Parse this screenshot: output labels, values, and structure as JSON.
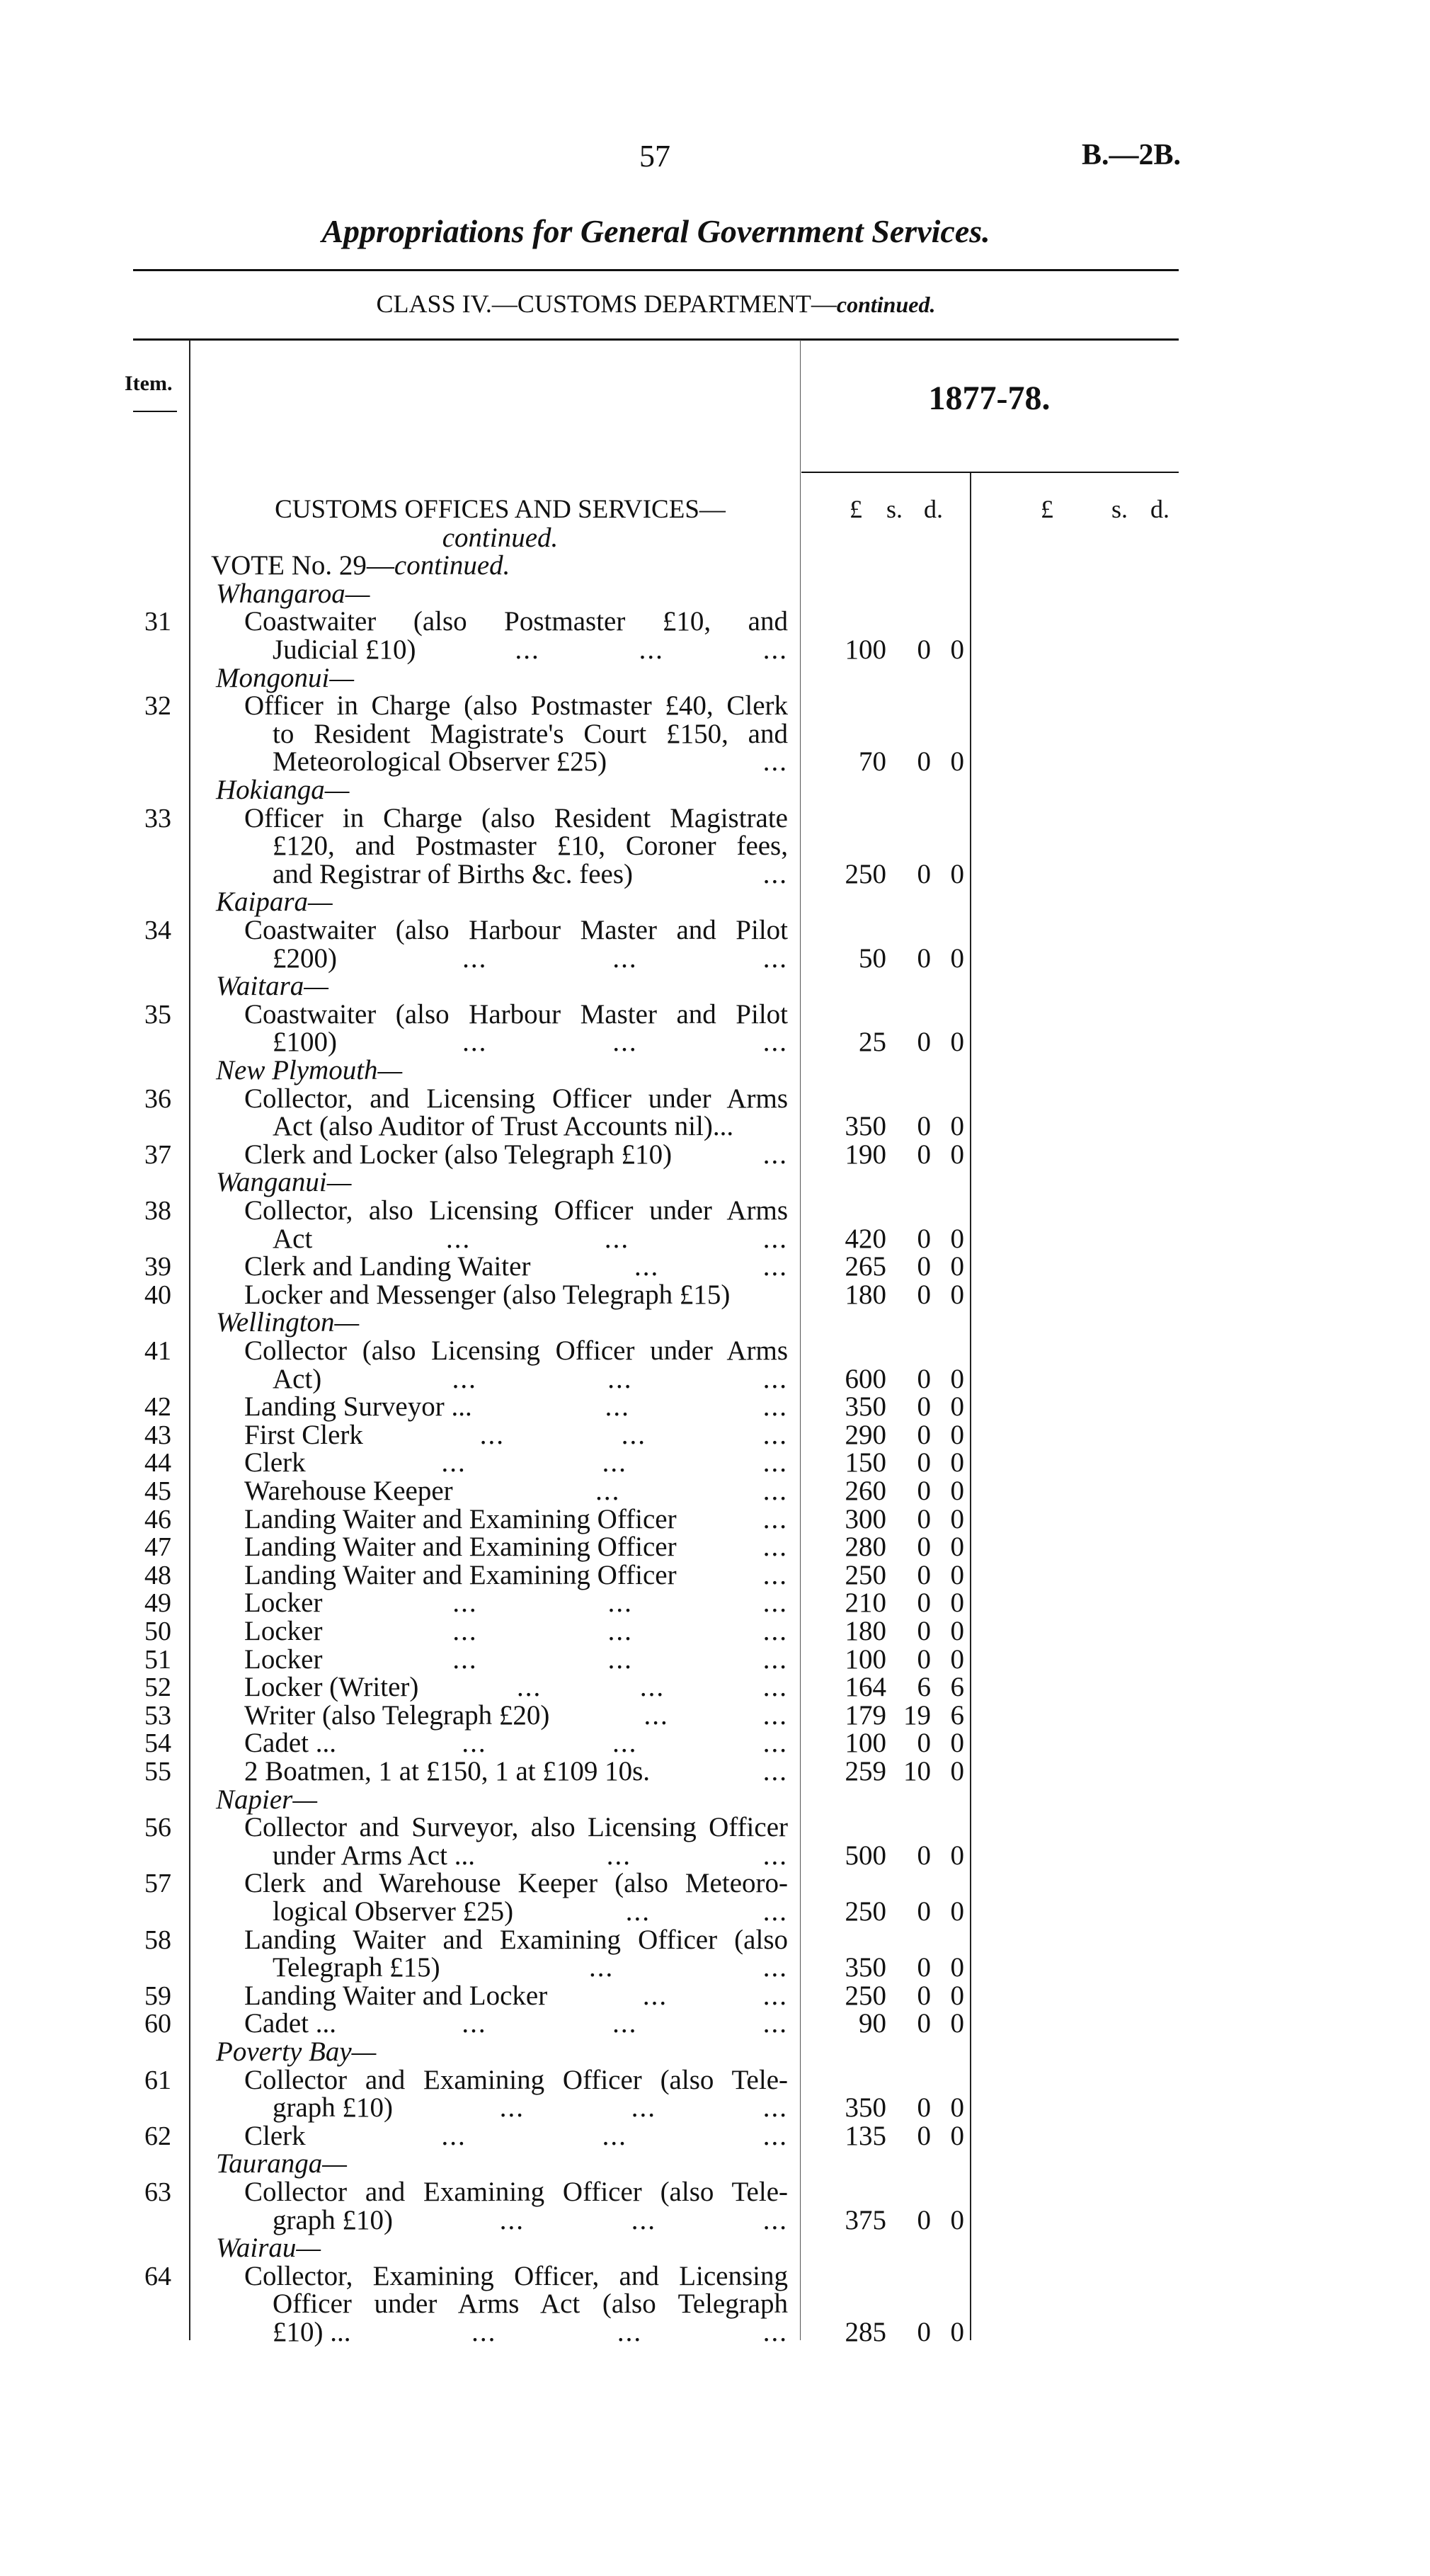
{
  "header": {
    "page_number": "57",
    "reference": "B.—2B.",
    "title": "Appropriations for General Government Services.",
    "class_title": "CLASS IV.—CUSTOMS DEPARTMENT—",
    "class_suffix": "continued."
  },
  "table": {
    "item_header": "Item.",
    "year_header": "1877-78.",
    "col1": {
      "pounds": "£",
      "shillings": "s.",
      "pence": "d."
    },
    "col2": {
      "pounds": "£",
      "shillings": "s.",
      "pence": "d."
    }
  },
  "lines": [
    {
      "kind": "heading",
      "text": "CUSTOMS OFFICES AND SERVICES—"
    },
    {
      "kind": "centered-italic",
      "text": "continued."
    },
    {
      "kind": "vote",
      "text": "VOTE No. 29—",
      "suffix": "continued."
    },
    {
      "kind": "place",
      "text": "Whangaroa—"
    },
    {
      "kind": "entry",
      "item": "31",
      "text": "Coastwaiter (also Postmaster £10, and",
      "justify": true
    },
    {
      "kind": "cont",
      "text": "Judicial £10)",
      "dots": 3,
      "amount": [
        "100",
        "0",
        "0"
      ]
    },
    {
      "kind": "place",
      "text": "Mongonui—"
    },
    {
      "kind": "entry",
      "item": "32",
      "text": "Officer in Charge (also Postmaster £40, Clerk",
      "justify": true
    },
    {
      "kind": "cont",
      "text": "to Resident Magistrate's Court £150, and",
      "justify": true
    },
    {
      "kind": "cont",
      "text": "Meteorological Observer £25)",
      "dots": 1,
      "amount": [
        "70",
        "0",
        "0"
      ]
    },
    {
      "kind": "place",
      "text": "Hokianga—"
    },
    {
      "kind": "entry",
      "item": "33",
      "text": "Officer in Charge (also Resident Magistrate",
      "justify": true
    },
    {
      "kind": "cont",
      "text": "£120, and Postmaster £10, Coroner fees,",
      "justify": true
    },
    {
      "kind": "cont",
      "text": "and Registrar of Births &c. fees)",
      "dots": 1,
      "amount": [
        "250",
        "0",
        "0"
      ]
    },
    {
      "kind": "place",
      "text": "Kaipara—"
    },
    {
      "kind": "entry",
      "item": "34",
      "text": "Coastwaiter (also Harbour Master and Pilot",
      "justify": true
    },
    {
      "kind": "cont",
      "text": "£200)",
      "dots": 3,
      "amount": [
        "50",
        "0",
        "0"
      ]
    },
    {
      "kind": "place",
      "text": "Waitara—"
    },
    {
      "kind": "entry",
      "item": "35",
      "text": "Coastwaiter (also Harbour Master and Pilot",
      "justify": true
    },
    {
      "kind": "cont",
      "text": "£100)",
      "dots": 3,
      "amount": [
        "25",
        "0",
        "0"
      ]
    },
    {
      "kind": "place",
      "text": "New Plymouth—"
    },
    {
      "kind": "entry",
      "item": "36",
      "text": "Collector, and Licensing Officer under Arms",
      "justify": true
    },
    {
      "kind": "cont",
      "text": "Act (also Auditor of Trust Accounts nil)...",
      "amount": [
        "350",
        "0",
        "0"
      ]
    },
    {
      "kind": "entry",
      "item": "37",
      "text": "Clerk and Locker (also Telegraph £10)",
      "dots": 1,
      "amount": [
        "190",
        "0",
        "0"
      ]
    },
    {
      "kind": "place",
      "text": "Wanganui—"
    },
    {
      "kind": "entry",
      "item": "38",
      "text": "Collector, also Licensing Officer under Arms",
      "justify": true
    },
    {
      "kind": "cont",
      "text": "Act",
      "dots": 3,
      "amount": [
        "420",
        "0",
        "0"
      ]
    },
    {
      "kind": "entry",
      "item": "39",
      "text": "Clerk and Landing Waiter",
      "dots": 2,
      "amount": [
        "265",
        "0",
        "0"
      ]
    },
    {
      "kind": "entry",
      "item": "40",
      "text": "Locker and Messenger (also Telegraph £15)",
      "amount": [
        "180",
        "0",
        "0"
      ]
    },
    {
      "kind": "place",
      "text": "Wellington—"
    },
    {
      "kind": "entry",
      "item": "41",
      "text": "Collector (also Licensing Officer under Arms",
      "justify": true
    },
    {
      "kind": "cont",
      "text": "Act)",
      "dots": 3,
      "amount": [
        "600",
        "0",
        "0"
      ]
    },
    {
      "kind": "entry",
      "item": "42",
      "text": "Landing Surveyor ...",
      "dots": 2,
      "amount": [
        "350",
        "0",
        "0"
      ]
    },
    {
      "kind": "entry",
      "item": "43",
      "text": "First Clerk",
      "dots": 3,
      "amount": [
        "290",
        "0",
        "0"
      ]
    },
    {
      "kind": "entry",
      "item": "44",
      "text": "Clerk",
      "dots": 3,
      "amount": [
        "150",
        "0",
        "0"
      ]
    },
    {
      "kind": "entry",
      "item": "45",
      "text": "Warehouse Keeper",
      "dots": 2,
      "amount": [
        "260",
        "0",
        "0"
      ]
    },
    {
      "kind": "entry",
      "item": "46",
      "text": "Landing Waiter and Examining Officer",
      "dots": 1,
      "amount": [
        "300",
        "0",
        "0"
      ]
    },
    {
      "kind": "entry",
      "item": "47",
      "text": "Landing Waiter and Examining Officer",
      "dots": 1,
      "amount": [
        "280",
        "0",
        "0"
      ]
    },
    {
      "kind": "entry",
      "item": "48",
      "text": "Landing Waiter and Examining Officer",
      "dots": 1,
      "amount": [
        "250",
        "0",
        "0"
      ]
    },
    {
      "kind": "entry",
      "item": "49",
      "text": "Locker",
      "dots": 3,
      "amount": [
        "210",
        "0",
        "0"
      ]
    },
    {
      "kind": "entry",
      "item": "50",
      "text": "Locker",
      "dots": 3,
      "amount": [
        "180",
        "0",
        "0"
      ]
    },
    {
      "kind": "entry",
      "item": "51",
      "text": "Locker",
      "dots": 3,
      "amount": [
        "100",
        "0",
        "0"
      ]
    },
    {
      "kind": "entry",
      "item": "52",
      "text": "Locker (Writer)",
      "dots": 3,
      "amount": [
        "164",
        "6",
        "6"
      ]
    },
    {
      "kind": "entry",
      "item": "53",
      "text": "Writer (also Telegraph £20)",
      "dots": 2,
      "amount": [
        "179",
        "19",
        "6"
      ]
    },
    {
      "kind": "entry",
      "item": "54",
      "text": "Cadet ...",
      "dots": 3,
      "amount": [
        "100",
        "0",
        "0"
      ]
    },
    {
      "kind": "entry",
      "item": "55",
      "text": "2 Boatmen, 1 at £150, 1 at £109 10s.",
      "dots": 1,
      "amount": [
        "259",
        "10",
        "0"
      ]
    },
    {
      "kind": "place",
      "text": "Napier—"
    },
    {
      "kind": "entry",
      "item": "56",
      "text": "Collector and Surveyor, also Licensing Officer",
      "justify": true
    },
    {
      "kind": "cont",
      "text": "under Arms Act ...",
      "dots": 2,
      "amount": [
        "500",
        "0",
        "0"
      ]
    },
    {
      "kind": "entry",
      "item": "57",
      "text": "Clerk and Warehouse Keeper (also Meteoro-",
      "justify": true
    },
    {
      "kind": "cont",
      "text": "logical Observer £25)",
      "dots": 2,
      "amount": [
        "250",
        "0",
        "0"
      ]
    },
    {
      "kind": "entry",
      "item": "58",
      "text": "Landing Waiter and Examining Officer (also",
      "justify": true
    },
    {
      "kind": "cont",
      "text": "Telegraph £15)",
      "dots": 2,
      "amount": [
        "350",
        "0",
        "0"
      ]
    },
    {
      "kind": "entry",
      "item": "59",
      "text": "Landing Waiter and Locker",
      "dots": 2,
      "amount": [
        "250",
        "0",
        "0"
      ]
    },
    {
      "kind": "entry",
      "item": "60",
      "text": "Cadet ...",
      "dots": 3,
      "amount": [
        "90",
        "0",
        "0"
      ]
    },
    {
      "kind": "place",
      "text": "Poverty Bay—"
    },
    {
      "kind": "entry",
      "item": "61",
      "text": "Collector and Examining Officer (also Tele-",
      "justify": true
    },
    {
      "kind": "cont",
      "text": "graph £10)",
      "dots": 3,
      "amount": [
        "350",
        "0",
        "0"
      ]
    },
    {
      "kind": "entry",
      "item": "62",
      "text": "Clerk",
      "dots": 3,
      "amount": [
        "135",
        "0",
        "0"
      ]
    },
    {
      "kind": "place",
      "text": "Tauranga—"
    },
    {
      "kind": "entry",
      "item": "63",
      "text": "Collector and Examining Officer (also Tele-",
      "justify": true
    },
    {
      "kind": "cont",
      "text": "graph £10)",
      "dots": 3,
      "amount": [
        "375",
        "0",
        "0"
      ]
    },
    {
      "kind": "place",
      "text": "Wairau—"
    },
    {
      "kind": "entry",
      "item": "64",
      "text": "Collector, Examining Officer, and Licensing",
      "justify": true
    },
    {
      "kind": "cont",
      "text": "Officer under Arms Act (also Telegraph",
      "justify": true
    },
    {
      "kind": "cont",
      "text": "£10) ...",
      "dots": 3,
      "amount": [
        "285",
        "0",
        "0"
      ]
    }
  ]
}
